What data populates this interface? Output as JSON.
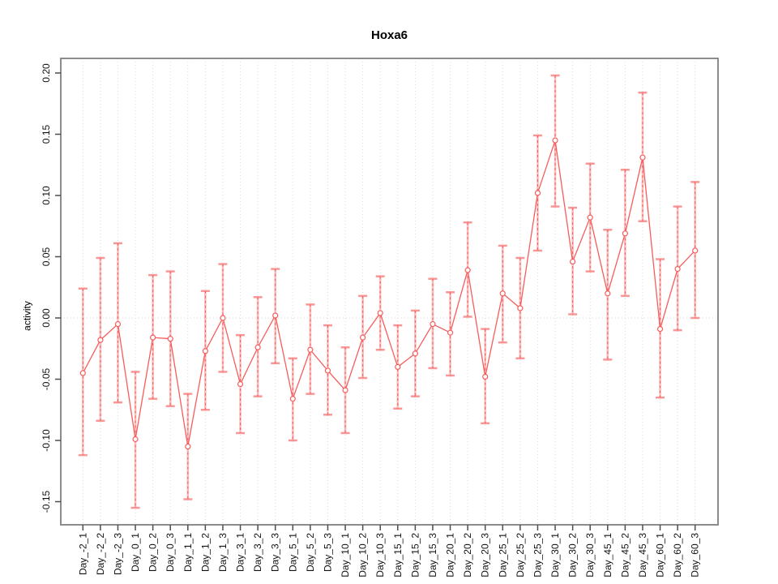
{
  "chart_data": {
    "type": "line",
    "title": "Hoxa6",
    "xlabel": "",
    "ylabel": "activity",
    "ylim": [
      -0.16,
      0.21
    ],
    "legend": "none",
    "grid": "dotted vertical line at every category; dotted horizontal line at y=0",
    "marker": "open-circle",
    "error_bars": true,
    "y_ticks": {
      "values": [
        0.2,
        0.15,
        0.1,
        0.05,
        0.0,
        -0.05,
        -0.1,
        -0.15
      ],
      "labels": [
        "0.20",
        "0.15",
        "0.10",
        "0.05",
        "0.00",
        "-0.05",
        "-0.10",
        "-0.15"
      ]
    },
    "categories": [
      "Day_-2_1",
      "Day_-2_2",
      "Day_-2_3",
      "Day_0_1",
      "Day_0_2",
      "Day_0_3",
      "Day_1_1",
      "Day_1_2",
      "Day_1_3",
      "Day_3_1",
      "Day_3_2",
      "Day_3_3",
      "Day_5_1",
      "Day_5_2",
      "Day_5_3",
      "Day_10_1",
      "Day_10_2",
      "Day_10_3",
      "Day_15_1",
      "Day_15_2",
      "Day_15_3",
      "Day_20_1",
      "Day_20_2",
      "Day_20_3",
      "Day_25_1",
      "Day_25_2",
      "Day_25_3",
      "Day_30_1",
      "Day_30_2",
      "Day_30_3",
      "Day_45_1",
      "Day_45_2",
      "Day_45_3",
      "Day_60_1",
      "Day_60_2",
      "Day_60_3"
    ],
    "series": [
      {
        "name": "activity",
        "values": [
          -0.045,
          -0.018,
          -0.005,
          -0.099,
          -0.016,
          -0.017,
          -0.105,
          -0.027,
          0.0,
          -0.054,
          -0.024,
          0.002,
          -0.066,
          -0.026,
          -0.043,
          -0.059,
          -0.016,
          0.004,
          -0.04,
          -0.029,
          -0.005,
          -0.012,
          0.039,
          -0.048,
          0.02,
          0.008,
          0.102,
          0.145,
          0.046,
          0.082,
          0.02,
          0.069,
          0.131,
          -0.009,
          0.04,
          0.055
        ],
        "upper": [
          0.024,
          0.049,
          0.061,
          -0.044,
          0.035,
          0.038,
          -0.062,
          0.022,
          0.044,
          -0.014,
          0.017,
          0.04,
          -0.033,
          0.011,
          -0.006,
          -0.024,
          0.018,
          0.034,
          -0.006,
          0.006,
          0.032,
          0.021,
          0.078,
          -0.009,
          0.059,
          0.049,
          0.149,
          0.198,
          0.09,
          0.126,
          0.072,
          0.121,
          0.184,
          0.048,
          0.091,
          0.111
        ],
        "lower": [
          -0.112,
          -0.084,
          -0.069,
          -0.155,
          -0.066,
          -0.072,
          -0.148,
          -0.075,
          -0.044,
          -0.094,
          -0.064,
          -0.037,
          -0.1,
          -0.062,
          -0.079,
          -0.094,
          -0.049,
          -0.026,
          -0.074,
          -0.064,
          -0.041,
          -0.047,
          0.001,
          -0.086,
          -0.02,
          -0.033,
          0.055,
          0.091,
          0.003,
          0.038,
          -0.034,
          0.018,
          0.079,
          -0.065,
          -0.01,
          0.0
        ]
      }
    ],
    "colors": {
      "line": "#f75c5c",
      "marker_stroke": "#f75c5c",
      "marker_fill": "#ffffff",
      "errorbar_body": "rgba(247,130,130,0.50)",
      "errorbar_dash": "rgba(244,72,72,0.85)",
      "errorbar_cap": "rgba(247,120,120,0.78)",
      "gridline": "#d9d9d9",
      "box": "#808080",
      "tick": "#4d4d4d",
      "tick_label": "#111111"
    }
  }
}
